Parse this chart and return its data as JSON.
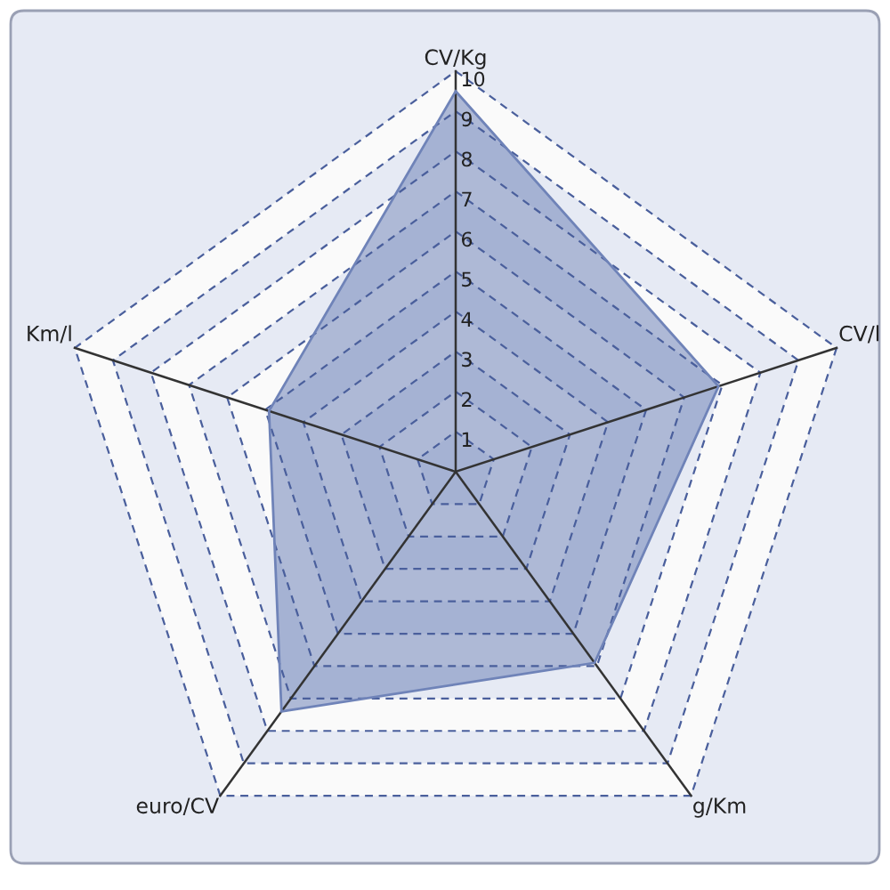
{
  "chart_data": {
    "type": "radar",
    "categories": [
      "CV/Kg",
      "CV/l",
      "g/Km",
      "euro/CV",
      "Km/l"
    ],
    "series": [
      {
        "color": "#6f83b8",
        "values": [
          9.5,
          6.9,
          5.9,
          7.4,
          4.9
        ]
      }
    ],
    "ylim": [
      0,
      10
    ],
    "yticks": [
      1,
      2,
      3,
      4,
      5,
      6,
      7,
      8,
      9,
      10
    ],
    "grid": true
  }
}
